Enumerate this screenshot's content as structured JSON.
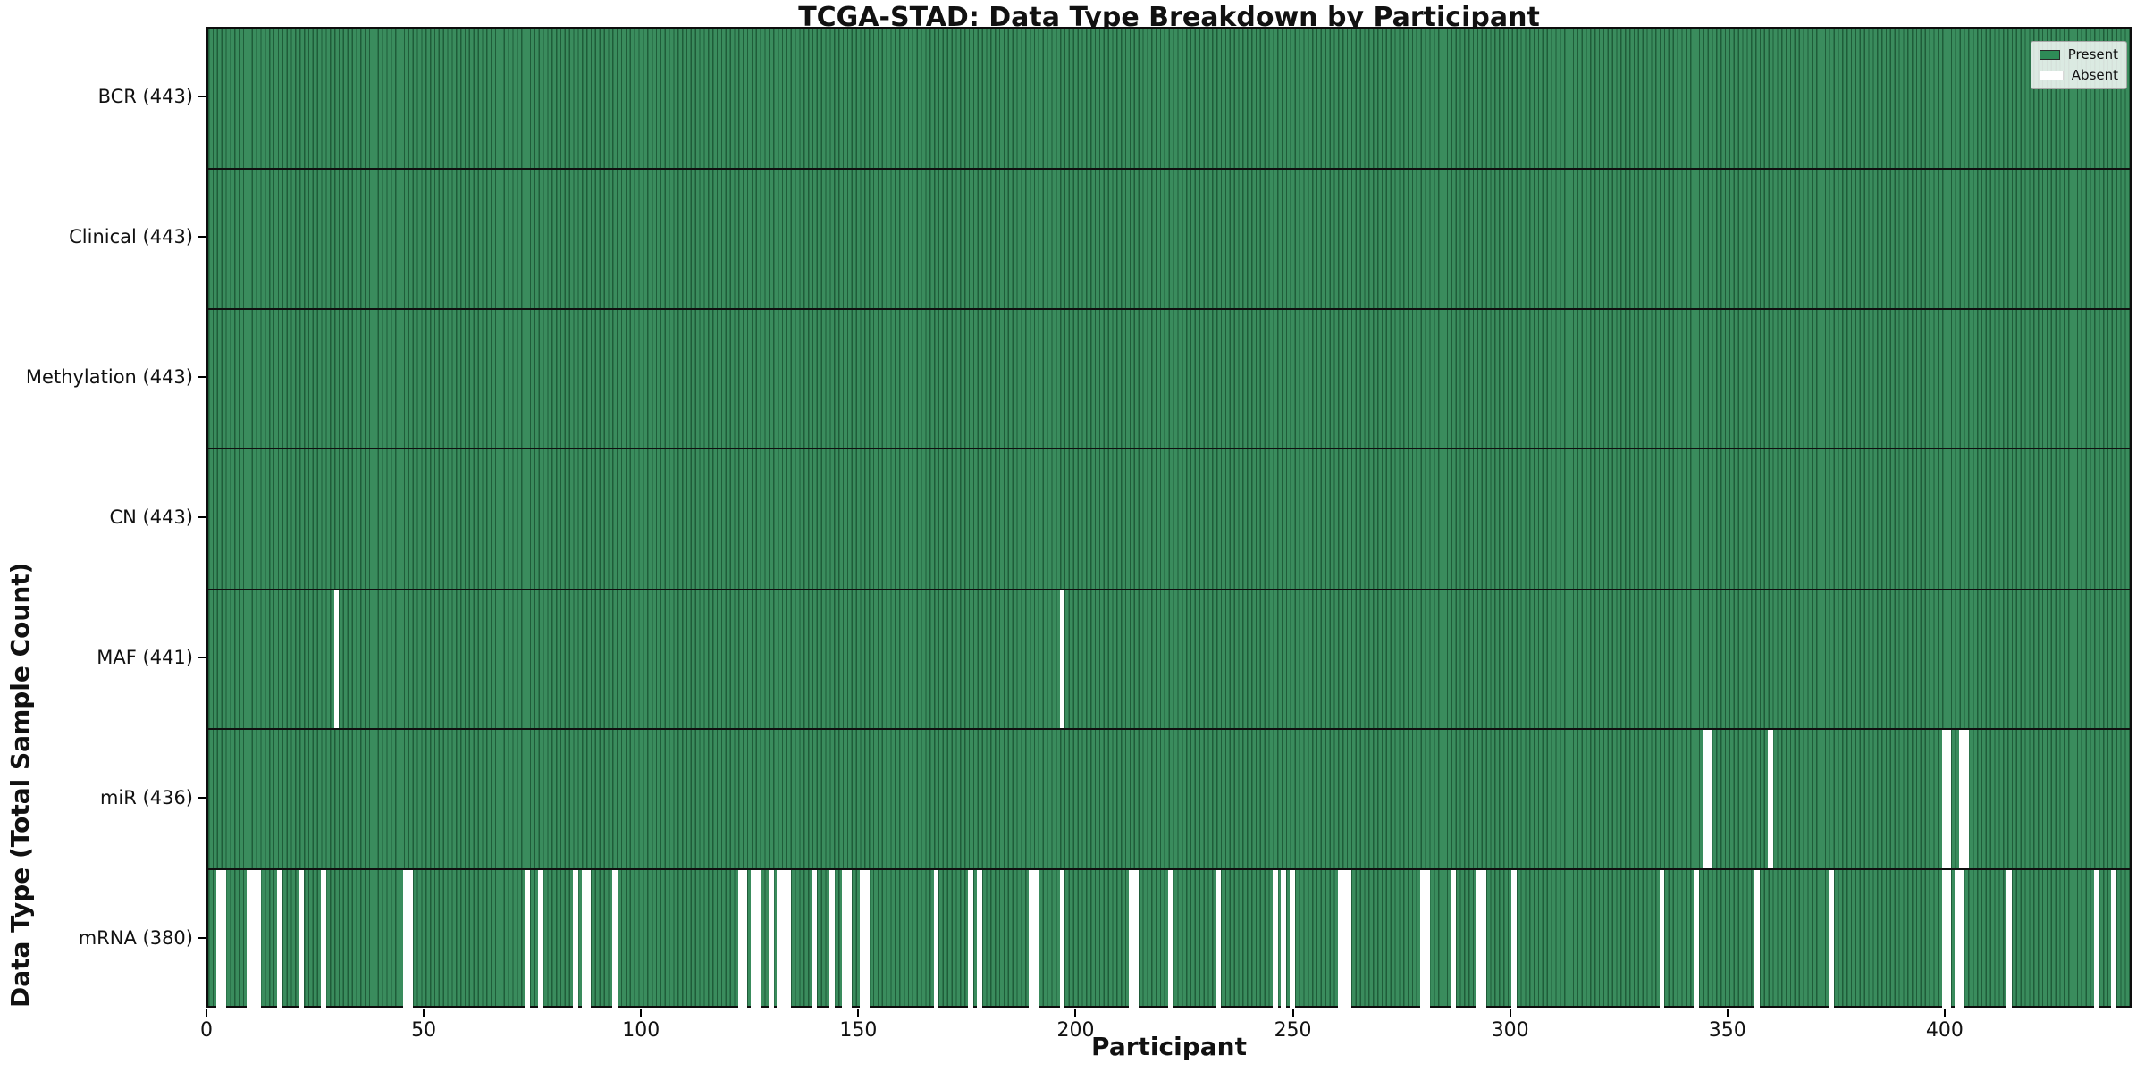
{
  "title": "TCGA-STAD: Data Type Breakdown by Participant",
  "axes": {
    "x_label": "Participant",
    "y_label": "Data Type (Total Sample Count)"
  },
  "legend": {
    "items": [
      {
        "label": "Present",
        "color": "#2e8b57"
      },
      {
        "label": "Absent",
        "color": "#ffffff"
      }
    ]
  },
  "chart_data": {
    "type": "heatmap",
    "title": "TCGA-STAD: Data Type Breakdown by Participant",
    "xlabel": "Participant",
    "ylabel": "Data Type (Total Sample Count)",
    "legend_entries": [
      "Present",
      "Absent"
    ],
    "legend_position": "upper right",
    "grid": false,
    "n_participants": 443,
    "x_range": [
      0,
      443
    ],
    "x_ticks": [
      0,
      50,
      100,
      150,
      200,
      250,
      300,
      350,
      400
    ],
    "colors": {
      "present": "#2e8b57",
      "present_fill": "#3a8c5d",
      "cell_edge": "#1f5c39",
      "absent": "#ffffff",
      "row_divider": "#101010"
    },
    "rows": [
      {
        "label": "BCR (443)",
        "data_type": "BCR",
        "total_count": 443,
        "absent_participants": []
      },
      {
        "label": "Clinical (443)",
        "data_type": "Clinical",
        "total_count": 443,
        "absent_participants": []
      },
      {
        "label": "Methylation (443)",
        "data_type": "Methylation",
        "total_count": 443,
        "absent_participants": []
      },
      {
        "label": "CN (443)",
        "data_type": "CN",
        "total_count": 443,
        "absent_participants": []
      },
      {
        "label": "MAF (441)",
        "data_type": "MAF",
        "total_count": 441,
        "absent_participants": [
          29,
          196
        ]
      },
      {
        "label": "miR (436)",
        "data_type": "miR",
        "total_count": 436,
        "absent_participants": [
          344,
          345,
          359,
          399,
          400,
          403,
          404
        ]
      },
      {
        "label": "mRNA (380)",
        "data_type": "mRNA",
        "total_count": 380,
        "absent_participants": [
          2,
          3,
          9,
          10,
          11,
          16,
          21,
          26,
          45,
          46,
          73,
          76,
          84,
          86,
          87,
          93,
          122,
          123,
          125,
          126,
          129,
          131,
          132,
          133,
          139,
          143,
          146,
          147,
          150,
          151,
          167,
          175,
          177,
          189,
          190,
          196,
          212,
          213,
          221,
          232,
          245,
          247,
          249,
          260,
          261,
          262,
          279,
          280,
          286,
          292,
          293,
          300,
          334,
          342,
          356,
          373,
          399,
          400,
          402,
          403,
          414,
          434,
          438
        ]
      }
    ]
  }
}
